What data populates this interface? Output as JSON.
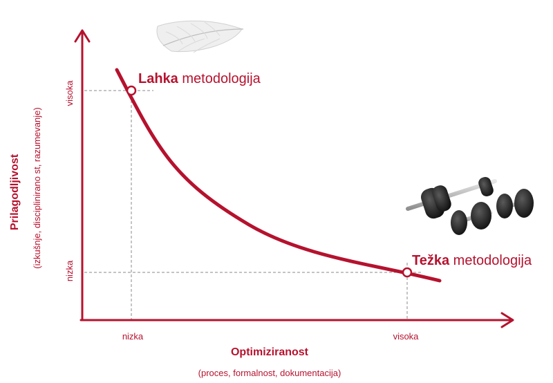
{
  "colors": {
    "accent": "#b5122e",
    "guide": "#888888"
  },
  "x_axis": {
    "title": "Optimiziranost",
    "subtitle": "(proces, formalnost, dokumentacija)",
    "ticks": [
      "nizka",
      "visoka"
    ]
  },
  "y_axis": {
    "title": "Prilagodljivost",
    "subtitle": "(izkušnje, disciplinirano st, razumevanje)",
    "ticks": [
      "visoka",
      "nizka"
    ]
  },
  "points": [
    {
      "bold": "Lahka",
      "rest": " metodologija",
      "icon": "feather-icon"
    },
    {
      "bold": "Težka",
      "rest": " metodologija",
      "icon": "dumbbells-icon"
    }
  ]
}
